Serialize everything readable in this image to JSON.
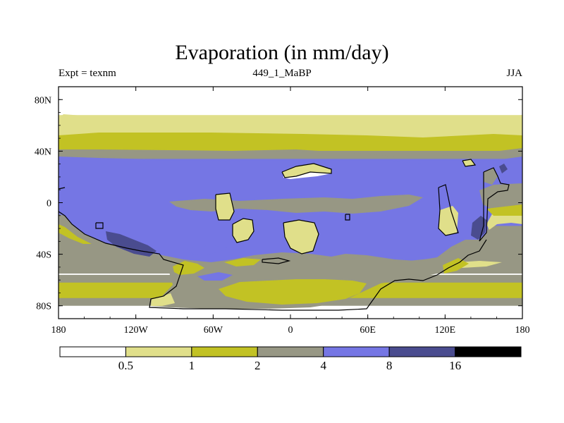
{
  "chart_data": {
    "type": "heatmap",
    "title": "Evaporation (in mm/day)",
    "subtitle_left": "Expt = texnm",
    "subtitle_center": "449_1_MaBP",
    "subtitle_right": "JJA",
    "x_range": [
      -180,
      180
    ],
    "y_range": [
      -90,
      90
    ],
    "x_ticks": [
      {
        "value": -180,
        "label": "180"
      },
      {
        "value": -120,
        "label": "120W"
      },
      {
        "value": -60,
        "label": "60W"
      },
      {
        "value": 0,
        "label": "0"
      },
      {
        "value": 60,
        "label": "60E"
      },
      {
        "value": 120,
        "label": "120E"
      },
      {
        "value": 180,
        "label": "180"
      }
    ],
    "y_ticks": [
      {
        "value": 80,
        "label": "80N"
      },
      {
        "value": 40,
        "label": "40N"
      },
      {
        "value": 0,
        "label": "0"
      },
      {
        "value": -40,
        "label": "40S"
      },
      {
        "value": -80,
        "label": "80S"
      }
    ],
    "colorbar": {
      "levels": [
        0.5,
        1,
        2,
        4,
        8,
        16
      ],
      "labels": [
        "0.5",
        "1",
        "2",
        "4",
        "8",
        "16"
      ],
      "colors": [
        "#ffffff",
        "#e0df8a",
        "#c2c224",
        "#979784",
        "#7576e4",
        "#4a4c8f",
        "#000000"
      ]
    },
    "bands": [
      {
        "lat_top": 68,
        "lat_bottom": 52,
        "level_bin": 1
      },
      {
        "lat_top": 53,
        "lat_bottom": 40,
        "level_bin": 2
      },
      {
        "lat_top": 41,
        "lat_bottom": 33,
        "level_bin": 3
      },
      {
        "lat_top": 34,
        "lat_bottom": -48,
        "level_bin": 4
      },
      {
        "lat_top": -18,
        "lat_bottom": -55,
        "level_bin": 3
      },
      {
        "lat_top": -56,
        "lat_bottom": -80,
        "level_bin": 3
      },
      {
        "lat_top": -62,
        "lat_bottom": -74,
        "level_bin": 2
      }
    ]
  }
}
